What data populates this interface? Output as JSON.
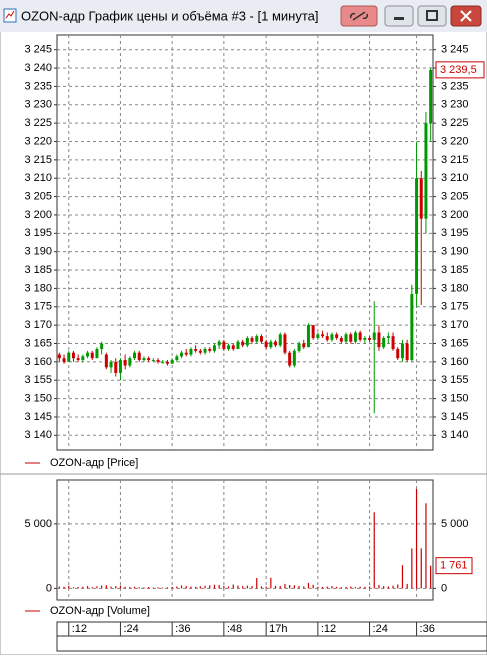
{
  "window": {
    "title": "OZON-адр График цены и объёма #3 - [1 минута]"
  },
  "chart_data": [
    {
      "type": "candlestick",
      "legend": "OZON-адр [Price]",
      "up_color": "#009900",
      "down_color": "#cc0000",
      "grid": true,
      "open": [
        3162,
        3161,
        3160,
        3162.5,
        3161,
        3160.5,
        3161.5,
        3162.5,
        3161,
        3163.5,
        3162,
        3158.5,
        3160,
        3157,
        3160.5,
        3159,
        3161,
        3162.5,
        3160.5,
        3161,
        3160.5,
        3160.5,
        3160,
        3160,
        3159.5,
        3160.5,
        3161.5,
        3162.5,
        3162,
        3163.5,
        3163,
        3162.5,
        3163.5,
        3163,
        3164.5,
        3165.5,
        3163.5,
        3164.5,
        3163.5,
        3165.5,
        3164.5,
        3166.5,
        3165.5,
        3167,
        3165.5,
        3164,
        3165.5,
        3164.5,
        3167.5,
        3162.5,
        3159,
        3163,
        3165,
        3164,
        3170,
        3166.5,
        3167.5,
        3167,
        3166,
        3167.5,
        3166.5,
        3165.5,
        3167.5,
        3165.5,
        3168,
        3166,
        3166.5,
        3166,
        3168,
        3164,
        3166.5,
        3167,
        3163.5,
        3161,
        3165,
        3160.5,
        3178.5,
        3210,
        3199,
        3225
      ],
      "high": [
        3162.5,
        3162,
        3163,
        3163,
        3162,
        3162,
        3163,
        3163,
        3164,
        3165.5,
        3162.5,
        3160.5,
        3161,
        3161,
        3162,
        3161.5,
        3163,
        3163,
        3161.5,
        3161.5,
        3161,
        3161,
        3160.5,
        3160.5,
        3161,
        3162,
        3163,
        3163.5,
        3164,
        3164.5,
        3163.5,
        3164,
        3164,
        3165,
        3166,
        3166,
        3165,
        3165,
        3166,
        3166,
        3167,
        3167,
        3167.5,
        3167.5,
        3166,
        3166,
        3166,
        3168,
        3168,
        3163,
        3163.5,
        3165.5,
        3166,
        3170.5,
        3170,
        3168,
        3168.5,
        3168,
        3168,
        3168,
        3167,
        3168,
        3168,
        3168.5,
        3168.5,
        3167,
        3167,
        3176.5,
        3170,
        3167,
        3168,
        3168,
        3164,
        3166,
        3166,
        3181,
        3220,
        3212,
        3228,
        3240
      ],
      "low": [
        3160,
        3159.5,
        3160,
        3160,
        3160,
        3160,
        3161,
        3160.5,
        3161,
        3162,
        3158,
        3157,
        3156,
        3155,
        3158,
        3158.5,
        3160.5,
        3160,
        3160,
        3160,
        3160,
        3159.5,
        3159.5,
        3159,
        3159.5,
        3160,
        3161,
        3161.5,
        3161.5,
        3162.5,
        3162,
        3162,
        3162.5,
        3162.5,
        3163.5,
        3163,
        3163,
        3163,
        3163.5,
        3164,
        3164,
        3165,
        3165,
        3165,
        3163.5,
        3163.5,
        3164,
        3164,
        3162,
        3158.5,
        3158.5,
        3162.5,
        3163.5,
        3164,
        3166,
        3166,
        3166.5,
        3165.5,
        3165.5,
        3166,
        3165,
        3165,
        3165,
        3165,
        3165.5,
        3165,
        3165.5,
        3146,
        3163,
        3163.5,
        3165,
        3163,
        3160.5,
        3160,
        3160,
        3160,
        3175,
        3175.5,
        3195,
        3220
      ],
      "close": [
        3161,
        3160,
        3162.5,
        3161,
        3160.5,
        3161.5,
        3162.5,
        3161,
        3163.5,
        3165,
        3158.5,
        3160,
        3157,
        3160.5,
        3159,
        3161,
        3162.5,
        3160.5,
        3161,
        3160.5,
        3160.5,
        3160,
        3160,
        3159.5,
        3160.5,
        3161.5,
        3162.5,
        3162,
        3163.5,
        3163,
        3162.5,
        3163.5,
        3163,
        3164.5,
        3165.5,
        3163.5,
        3164.5,
        3163.5,
        3165.5,
        3164.5,
        3166.5,
        3165.5,
        3167,
        3165.5,
        3164,
        3165.5,
        3164.5,
        3167.5,
        3162.5,
        3159,
        3163,
        3165,
        3164,
        3170,
        3166.5,
        3167.5,
        3167,
        3166,
        3167.5,
        3166.5,
        3165.5,
        3167.5,
        3165.5,
        3168,
        3166,
        3166.5,
        3166,
        3168,
        3164,
        3166.5,
        3167,
        3163.5,
        3161,
        3165,
        3160.5,
        3178.5,
        3210,
        3199,
        3225,
        3239.5
      ],
      "last_value_label": "3 239,5",
      "ylim": [
        3136,
        3249
      ],
      "yticks": [
        {
          "value": 3140,
          "label": "3 140"
        },
        {
          "value": 3145,
          "label": "3 145"
        },
        {
          "value": 3150,
          "label": "3 150"
        },
        {
          "value": 3155,
          "label": "3 155"
        },
        {
          "value": 3160,
          "label": "3 160"
        },
        {
          "value": 3165,
          "label": "3 165"
        },
        {
          "value": 3170,
          "label": "3 170"
        },
        {
          "value": 3175,
          "label": "3 175"
        },
        {
          "value": 3180,
          "label": "3 180"
        },
        {
          "value": 3185,
          "label": "3 185"
        },
        {
          "value": 3190,
          "label": "3 190"
        },
        {
          "value": 3195,
          "label": "3 195"
        },
        {
          "value": 3200,
          "label": "3 200"
        },
        {
          "value": 3205,
          "label": "3 205"
        },
        {
          "value": 3210,
          "label": "3 210"
        },
        {
          "value": 3215,
          "label": "3 215"
        },
        {
          "value": 3220,
          "label": "3 220"
        },
        {
          "value": 3225,
          "label": "3 225"
        },
        {
          "value": 3230,
          "label": "3 230"
        },
        {
          "value": 3235,
          "label": "3 235"
        },
        {
          "value": 3240,
          "label": "3 240"
        },
        {
          "value": 3245,
          "label": "3 245"
        }
      ]
    },
    {
      "type": "bar",
      "legend": "OZON-адр [Volume]",
      "color": "#cc0000",
      "grid": true,
      "values": [
        150,
        120,
        200,
        90,
        110,
        130,
        180,
        100,
        160,
        220,
        250,
        140,
        180,
        210,
        120,
        100,
        130,
        90,
        80,
        110,
        70,
        90,
        60,
        80,
        120,
        150,
        230,
        180,
        140,
        120,
        160,
        200,
        240,
        280,
        260,
        190,
        150,
        300,
        220,
        170,
        210,
        180,
        800,
        160,
        140,
        820,
        200,
        180,
        350,
        260,
        240,
        190,
        150,
        420,
        280,
        130,
        110,
        140,
        180,
        120,
        90,
        110,
        150,
        100,
        130,
        120,
        140,
        5900,
        260,
        180,
        150,
        210,
        300,
        1800,
        350,
        3100,
        7700,
        3100,
        6600,
        1761
      ],
      "last_value_label": "1 761",
      "ylim": [
        -900,
        8400
      ],
      "yticks": [
        0,
        {
          "value": 5000,
          "label": "5 000"
        }
      ],
      "xticks": [
        {
          "value": 2,
          "label": ":12"
        },
        {
          "value": 13,
          "label": ":24"
        },
        {
          "value": 24,
          "label": ":36"
        },
        {
          "value": 35,
          "label": ":48"
        },
        {
          "value": 44,
          "label": "17h"
        },
        {
          "value": 55,
          "label": ":12"
        },
        {
          "value": 66,
          "label": ":24"
        },
        {
          "value": 76,
          "label": ":36"
        }
      ]
    }
  ]
}
